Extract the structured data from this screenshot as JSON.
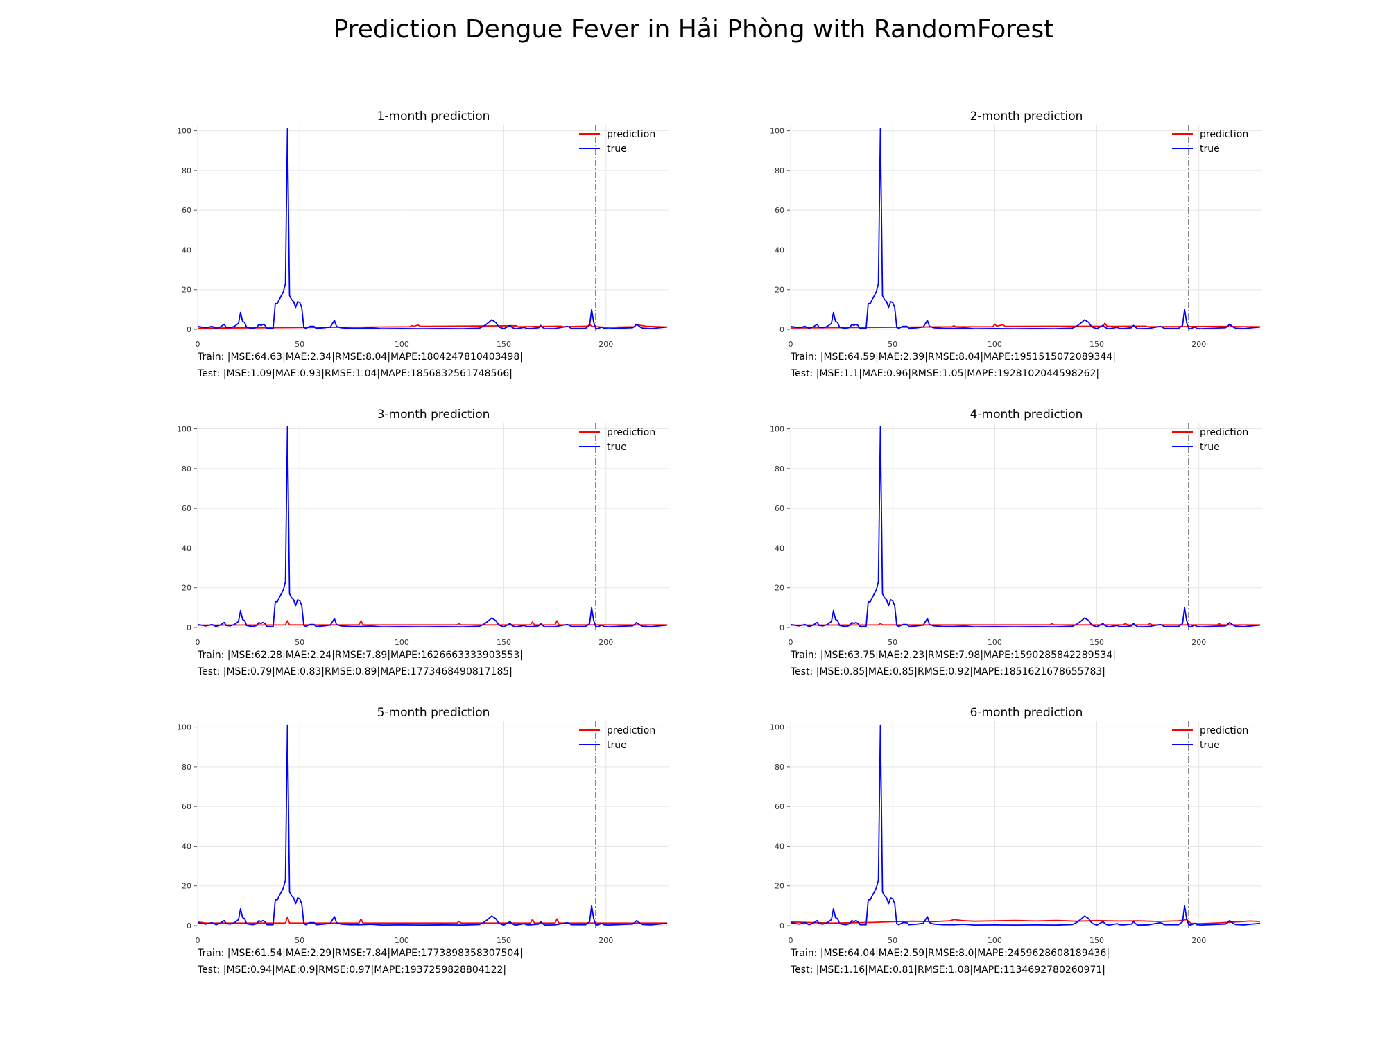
{
  "figure_title": "Prediction Dengue Fever in Hải Phòng with RandomForest",
  "colors": {
    "prediction": "#ff0000",
    "true": "#0000ff",
    "grid": "#e5e5e5",
    "split_line": "#888888"
  },
  "chart_data": [
    {
      "type": "line",
      "title": "1-month prediction",
      "xlim": [
        0,
        231
      ],
      "ylim": [
        0,
        103
      ],
      "xticks": [
        0,
        50,
        100,
        150,
        200
      ],
      "yticks": [
        0,
        20,
        40,
        60,
        80,
        100
      ],
      "split_x": 195,
      "legend": "top-right",
      "series": [
        {
          "name": "prediction",
          "color": "#ff0000",
          "base": 1.3,
          "points": [
            [
              0,
              0.6
            ],
            [
              104,
              1.3
            ],
            [
              105,
              1.9
            ],
            [
              106,
              1.5
            ],
            [
              108,
              2.2
            ],
            [
              109,
              1.5
            ],
            [
              156,
              1.8
            ],
            [
              157,
              1.3
            ],
            [
              178,
              1.6
            ],
            [
              179,
              1.3
            ],
            [
              191,
              1.6
            ],
            [
              192,
              2.5
            ],
            [
              193,
              1.5
            ],
            [
              200,
              1.0
            ],
            [
              214,
              1.3
            ],
            [
              215,
              2.6
            ],
            [
              216,
              2.2
            ],
            [
              220,
              1.5
            ],
            [
              230,
              1.2
            ]
          ]
        },
        {
          "name": "true",
          "color": "#0000ff"
        }
      ],
      "metrics": {
        "train": "Train: |MSE:64.63|MAE:2.34|RMSE:8.04|MAPE:1804247810403498|",
        "test": "Test: |MSE:1.09|MAE:0.93|RMSE:1.04|MAPE:1856832561748566|"
      }
    },
    {
      "type": "line",
      "title": "2-month prediction",
      "xlim": [
        0,
        231
      ],
      "ylim": [
        0,
        103
      ],
      "xticks": [
        0,
        50,
        100,
        150,
        200
      ],
      "yticks": [
        0,
        20,
        40,
        60,
        80,
        100
      ],
      "split_x": 195,
      "legend": "top-right",
      "series": [
        {
          "name": "prediction",
          "color": "#ff0000",
          "base": 1.3,
          "points": [
            [
              0,
              0.7
            ],
            [
              79,
              1.3
            ],
            [
              80,
              1.8
            ],
            [
              81,
              1.3
            ],
            [
              99,
              1.3
            ],
            [
              100,
              2.6
            ],
            [
              101,
              1.6
            ],
            [
              104,
              2.3
            ],
            [
              105,
              1.5
            ],
            [
              153,
              1.6
            ],
            [
              154,
              3.1
            ],
            [
              155,
              1.5
            ],
            [
              174,
              1.6
            ],
            [
              175,
              1.3
            ],
            [
              214,
              1.5
            ],
            [
              215,
              2.1
            ],
            [
              216,
              1.4
            ],
            [
              230,
              1.3
            ]
          ]
        },
        {
          "name": "true",
          "color": "#0000ff"
        }
      ],
      "metrics": {
        "train": "Train: |MSE:64.59|MAE:2.39|RMSE:8.04|MAPE:1951515072089344|",
        "test": "Test: |MSE:1.1|MAE:0.96|RMSE:1.05|MAPE:1928102044598262|"
      }
    },
    {
      "type": "line",
      "title": "3-month prediction",
      "xlim": [
        0,
        231
      ],
      "ylim": [
        0,
        103
      ],
      "xticks": [
        0,
        50,
        100,
        150,
        200
      ],
      "yticks": [
        0,
        20,
        40,
        60,
        80,
        100
      ],
      "split_x": 195,
      "legend": "top-right",
      "series": [
        {
          "name": "prediction",
          "color": "#ff0000",
          "base": 1.3,
          "points": [
            [
              0,
              1.2
            ],
            [
              43,
              1.3
            ],
            [
              44,
              3.4
            ],
            [
              45,
              1.3
            ],
            [
              79,
              1.3
            ],
            [
              80,
              3.4
            ],
            [
              81,
              1.3
            ],
            [
              127,
              1.3
            ],
            [
              128,
              2.0
            ],
            [
              129,
              1.3
            ],
            [
              163,
              1.3
            ],
            [
              164,
              2.8
            ],
            [
              165,
              1.3
            ],
            [
              175,
              1.3
            ],
            [
              176,
              3.4
            ],
            [
              177,
              1.3
            ],
            [
              230,
              1.3
            ]
          ]
        },
        {
          "name": "true",
          "color": "#0000ff"
        }
      ],
      "metrics": {
        "train": "Train: |MSE:62.28|MAE:2.24|RMSE:7.89|MAPE:1626663333903553|",
        "test": "Test: |MSE:0.79|MAE:0.83|RMSE:0.89|MAPE:1773468490817185|"
      }
    },
    {
      "type": "line",
      "title": "4-month prediction",
      "xlim": [
        0,
        231
      ],
      "ylim": [
        0,
        103
      ],
      "xticks": [
        0,
        50,
        100,
        150,
        200
      ],
      "yticks": [
        0,
        20,
        40,
        60,
        80,
        100
      ],
      "split_x": 195,
      "legend": "top-right",
      "series": [
        {
          "name": "prediction",
          "color": "#ff0000",
          "base": 1.3,
          "points": [
            [
              0,
              1.2
            ],
            [
              43,
              1.3
            ],
            [
              44,
              2.0
            ],
            [
              45,
              1.3
            ],
            [
              127,
              1.3
            ],
            [
              128,
              2.0
            ],
            [
              129,
              1.3
            ],
            [
              163,
              1.3
            ],
            [
              164,
              2.0
            ],
            [
              165,
              1.3
            ],
            [
              175,
              1.3
            ],
            [
              176,
              2.0
            ],
            [
              177,
              1.3
            ],
            [
              209,
              1.3
            ],
            [
              210,
              1.9
            ],
            [
              211,
              1.3
            ],
            [
              230,
              1.3
            ]
          ]
        },
        {
          "name": "true",
          "color": "#0000ff"
        }
      ],
      "metrics": {
        "train": "Train: |MSE:63.75|MAE:2.23|RMSE:7.98|MAPE:1590285842289534|",
        "test": "Test: |MSE:0.85|MAE:0.85|RMSE:0.92|MAPE:1851621678655783|"
      }
    },
    {
      "type": "line",
      "title": "5-month prediction",
      "xlim": [
        0,
        231
      ],
      "ylim": [
        0,
        103
      ],
      "xticks": [
        0,
        50,
        100,
        150,
        200
      ],
      "yticks": [
        0,
        20,
        40,
        60,
        80,
        100
      ],
      "split_x": 195,
      "legend": "top-right",
      "series": [
        {
          "name": "prediction",
          "color": "#ff0000",
          "base": 1.3,
          "points": [
            [
              0,
              1.8
            ],
            [
              4,
              1.3
            ],
            [
              43,
              1.3
            ],
            [
              44,
              4.3
            ],
            [
              45,
              1.3
            ],
            [
              79,
              1.3
            ],
            [
              80,
              3.4
            ],
            [
              81,
              1.3
            ],
            [
              127,
              1.3
            ],
            [
              128,
              2.1
            ],
            [
              129,
              1.3
            ],
            [
              163,
              1.3
            ],
            [
              164,
              3.1
            ],
            [
              165,
              1.3
            ],
            [
              175,
              1.3
            ],
            [
              176,
              3.4
            ],
            [
              177,
              1.3
            ],
            [
              230,
              1.3
            ]
          ]
        },
        {
          "name": "true",
          "color": "#0000ff"
        }
      ],
      "metrics": {
        "train": "Train: |MSE:61.54|MAE:2.29|RMSE:7.84|MAPE:1773898358307504|",
        "test": "Test: |MSE:0.94|MAE:0.9|RMSE:0.97|MAPE:1937259828804122|"
      }
    },
    {
      "type": "line",
      "title": "6-month prediction",
      "xlim": [
        0,
        231
      ],
      "ylim": [
        0,
        103
      ],
      "xticks": [
        0,
        50,
        100,
        150,
        200
      ],
      "yticks": [
        0,
        20,
        40,
        60,
        80,
        100
      ],
      "split_x": 195,
      "legend": "top-right",
      "series": [
        {
          "name": "prediction",
          "color": "#ff0000",
          "base": 1.3,
          "points": [
            [
              0,
              1.8
            ],
            [
              20,
              1.3
            ],
            [
              40,
              1.6
            ],
            [
              50,
              2.0
            ],
            [
              60,
              2.2
            ],
            [
              70,
              2.0
            ],
            [
              78,
              2.4
            ],
            [
              80,
              3.0
            ],
            [
              84,
              2.5
            ],
            [
              90,
              2.2
            ],
            [
              100,
              2.4
            ],
            [
              110,
              2.6
            ],
            [
              120,
              2.3
            ],
            [
              130,
              2.6
            ],
            [
              140,
              2.2
            ],
            [
              150,
              2.5
            ],
            [
              160,
              2.3
            ],
            [
              170,
              2.4
            ],
            [
              180,
              2.1
            ],
            [
              190,
              2.4
            ],
            [
              194,
              3.0
            ],
            [
              196,
              1.2
            ],
            [
              200,
              1.0
            ],
            [
              210,
              1.4
            ],
            [
              220,
              2.0
            ],
            [
              225,
              2.3
            ],
            [
              230,
              2.1
            ]
          ]
        },
        {
          "name": "true",
          "color": "#0000ff"
        }
      ],
      "metrics": {
        "train": "Train: |MSE:64.04|MAE:2.59|RMSE:8.0|MAPE:2459628608189436|",
        "test": "Test: |MSE:1.16|MAE:0.81|RMSE:1.08|MAPE:1134692780260971|"
      }
    }
  ],
  "true_series": {
    "name": "true",
    "points": [
      [
        0,
        1.5
      ],
      [
        4,
        0.8
      ],
      [
        7,
        1.5
      ],
      [
        9,
        0.5
      ],
      [
        11,
        1.2
      ],
      [
        13,
        2.5
      ],
      [
        14,
        1.0
      ],
      [
        16,
        0.8
      ],
      [
        18,
        1.5
      ],
      [
        20,
        3.0
      ],
      [
        21,
        8.5
      ],
      [
        22,
        4.0
      ],
      [
        23,
        3.5
      ],
      [
        24,
        1.0
      ],
      [
        25,
        0.8
      ],
      [
        27,
        0.5
      ],
      [
        29,
        1.0
      ],
      [
        30,
        2.5
      ],
      [
        31,
        2.0
      ],
      [
        32,
        2.5
      ],
      [
        33,
        2.0
      ],
      [
        34,
        0.5
      ],
      [
        37,
        0.5
      ],
      [
        38,
        13
      ],
      [
        39,
        13
      ],
      [
        40,
        15
      ],
      [
        41,
        17
      ],
      [
        42,
        19
      ],
      [
        43,
        23
      ],
      [
        44,
        101
      ],
      [
        45,
        17
      ],
      [
        46,
        15
      ],
      [
        47,
        14
      ],
      [
        48,
        11
      ],
      [
        49,
        14
      ],
      [
        50,
        13.5
      ],
      [
        51,
        11
      ],
      [
        52,
        1.0
      ],
      [
        53,
        0.5
      ],
      [
        54,
        1.0
      ],
      [
        55,
        1.5
      ],
      [
        57,
        1.5
      ],
      [
        58,
        0.5
      ],
      [
        62,
        0.8
      ],
      [
        65,
        1.2
      ],
      [
        67,
        4.5
      ],
      [
        68,
        1.5
      ],
      [
        70,
        0.8
      ],
      [
        75,
        0.5
      ],
      [
        80,
        0.5
      ],
      [
        85,
        0.7
      ],
      [
        90,
        0.3
      ],
      [
        100,
        0.4
      ],
      [
        110,
        0.3
      ],
      [
        120,
        0.4
      ],
      [
        130,
        0.3
      ],
      [
        138,
        0.6
      ],
      [
        140,
        1.5
      ],
      [
        142,
        3.0
      ],
      [
        144,
        4.8
      ],
      [
        146,
        3.5
      ],
      [
        147,
        2.0
      ],
      [
        148,
        1.0
      ],
      [
        150,
        0.3
      ],
      [
        153,
        2.0
      ],
      [
        154,
        1.0
      ],
      [
        155,
        0.5
      ],
      [
        156,
        0.3
      ],
      [
        160,
        1.0
      ],
      [
        161,
        0.5
      ],
      [
        163,
        0.4
      ],
      [
        167,
        0.8
      ],
      [
        168,
        2.0
      ],
      [
        169,
        1.0
      ],
      [
        170,
        0.3
      ],
      [
        175,
        0.4
      ],
      [
        181,
        1.5
      ],
      [
        182,
        1.2
      ],
      [
        183,
        0.5
      ],
      [
        190,
        0.5
      ],
      [
        192,
        2.0
      ],
      [
        193,
        10
      ],
      [
        194,
        3.5
      ],
      [
        195,
        0.5
      ],
      [
        196,
        0.3
      ],
      [
        198,
        1.2
      ],
      [
        199,
        0.5
      ],
      [
        201,
        0.3
      ],
      [
        205,
        0.5
      ],
      [
        210,
        0.7
      ],
      [
        213,
        0.8
      ],
      [
        214,
        1.5
      ],
      [
        215,
        2.5
      ],
      [
        216,
        1.8
      ],
      [
        217,
        1.0
      ],
      [
        218,
        0.6
      ],
      [
        222,
        0.4
      ],
      [
        230,
        1.2
      ]
    ]
  }
}
